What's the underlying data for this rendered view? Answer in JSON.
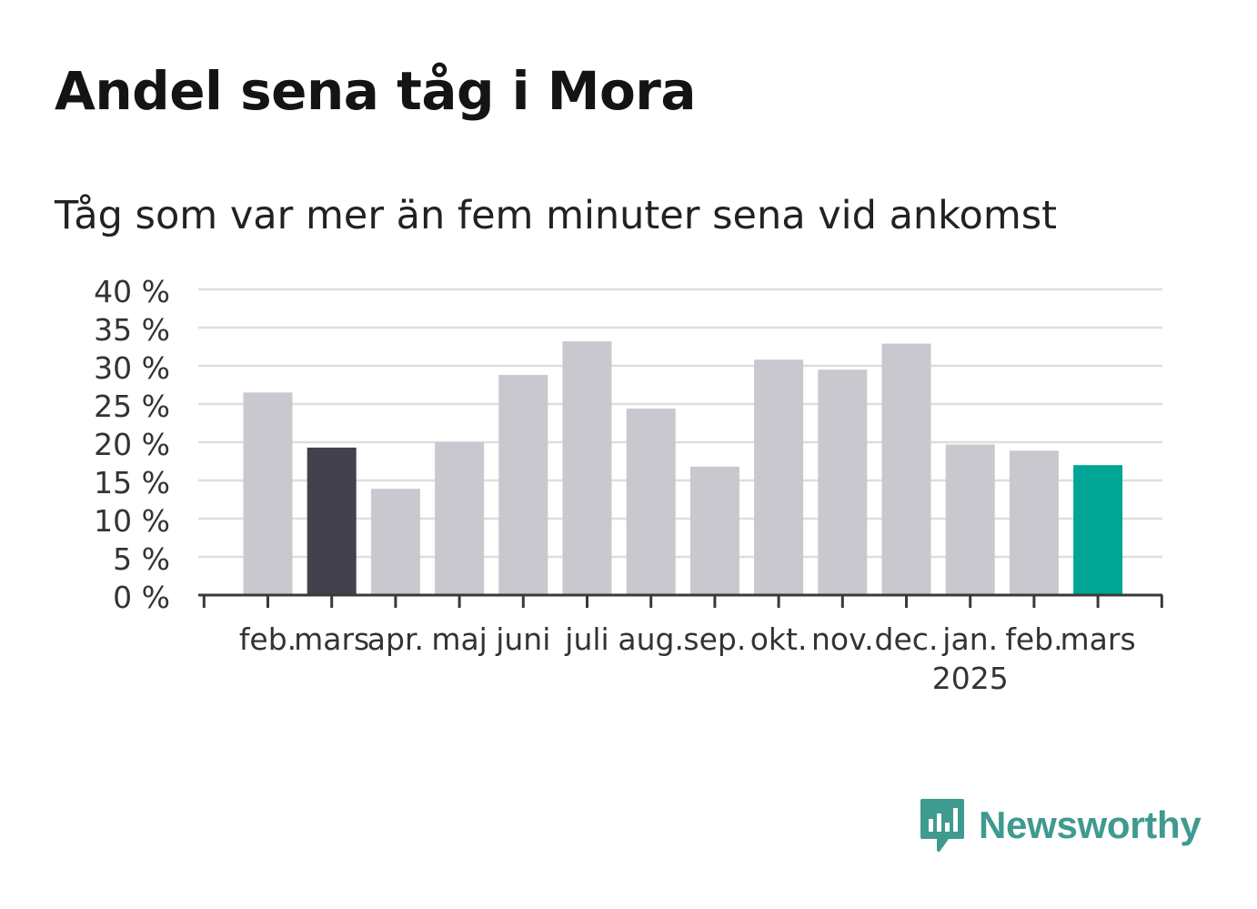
{
  "header": {
    "title": "Andel sena tåg i Mora",
    "subtitle": "Tåg som var mer än fem minuter sena vid ankomst"
  },
  "brand": {
    "name": "Newsworthy",
    "icon": "bar-chart-speech-bubble-icon",
    "color": "#3f9a8f"
  },
  "colors": {
    "default_bar": "#c9c8cf",
    "previous_bar": "#43414d",
    "current_bar": "#00a596",
    "grid": "#dedede",
    "axis": "#3a3a3a"
  },
  "chart_data": {
    "type": "bar",
    "categories": [
      "feb.",
      "mars",
      "apr.",
      "maj",
      "juni",
      "juli",
      "aug.",
      "sep.",
      "okt.",
      "nov.",
      "dec.",
      "jan.",
      "feb.",
      "mars"
    ],
    "year_labels": [
      {
        "index": 11,
        "label": "2025"
      }
    ],
    "values": [
      26.5,
      19.3,
      13.9,
      20.0,
      28.8,
      33.2,
      24.4,
      16.8,
      30.8,
      29.5,
      32.9,
      19.7,
      18.9,
      17.0
    ],
    "bar_colors": [
      "#c9c8cf",
      "#43414d",
      "#c9c8cf",
      "#c9c8cf",
      "#c9c8cf",
      "#c9c8cf",
      "#c9c8cf",
      "#c9c8cf",
      "#c9c8cf",
      "#c9c8cf",
      "#c9c8cf",
      "#c9c8cf",
      "#c9c8cf",
      "#00a596"
    ],
    "ylim": [
      0,
      40
    ],
    "yticks": [
      0,
      5,
      10,
      15,
      20,
      25,
      30,
      35,
      40
    ],
    "ytick_labels": [
      "0 %",
      "5 %",
      "10 %",
      "15 %",
      "20 %",
      "25 %",
      "30 %",
      "35 %",
      "40 %"
    ],
    "grid": true,
    "legend": false
  }
}
